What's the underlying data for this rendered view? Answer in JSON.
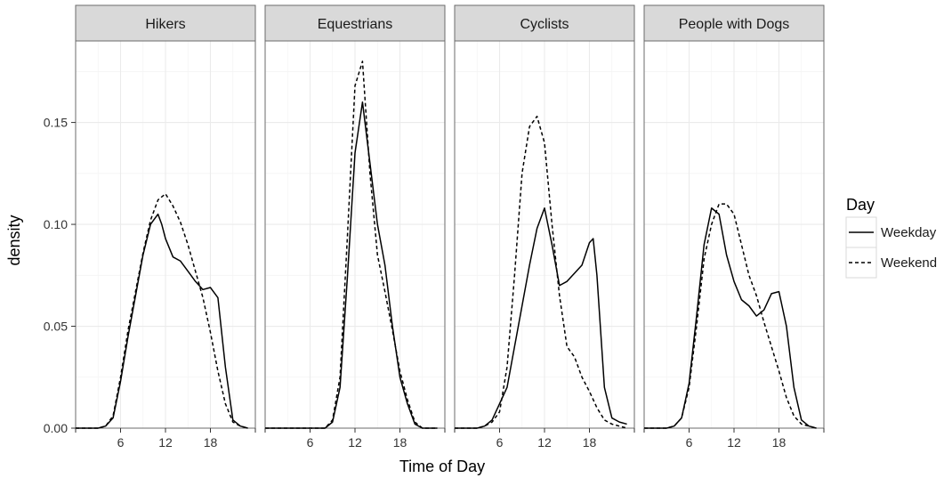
{
  "chart_data": {
    "type": "line",
    "subtype": "faceted density",
    "xlabel": "Time of Day",
    "ylabel": "density",
    "xlim": [
      0,
      24
    ],
    "ylim": [
      0,
      0.19
    ],
    "x_ticks": [
      6,
      12,
      18
    ],
    "x_tick_labels": [
      "6",
      "12",
      "18"
    ],
    "y_ticks": [
      0,
      0.05,
      0.1,
      0.15
    ],
    "y_tick_labels": [
      "0.00",
      "0.05",
      "0.10",
      "0.15"
    ],
    "grid": true,
    "legend": {
      "title": "Day",
      "position": "right",
      "entries": [
        {
          "label": "Weekday",
          "linetype": "solid"
        },
        {
          "label": "Weekend",
          "linetype": "dashed"
        }
      ]
    },
    "panels": [
      {
        "label": "Hikers",
        "series": [
          {
            "name": "Weekday",
            "x": [
              0,
              3,
              4,
              5,
              6,
              7,
              8,
              9,
              10,
              11,
              11.5,
              12,
              13,
              14,
              15,
              16,
              17,
              18,
              19,
              20,
              21,
              22,
              23
            ],
            "y": [
              0,
              0,
              0.001,
              0.005,
              0.023,
              0.045,
              0.065,
              0.085,
              0.1,
              0.105,
              0.1,
              0.093,
              0.084,
              0.082,
              0.077,
              0.072,
              0.068,
              0.069,
              0.064,
              0.03,
              0.004,
              0.001,
              0
            ]
          },
          {
            "name": "Weekend",
            "x": [
              0,
              3,
              4,
              5,
              6,
              7,
              8,
              9,
              10,
              11,
              12,
              13,
              14,
              15,
              16,
              17,
              18,
              19,
              20,
              21,
              22,
              23
            ],
            "y": [
              0,
              0,
              0.001,
              0.006,
              0.025,
              0.048,
              0.067,
              0.086,
              0.102,
              0.112,
              0.115,
              0.109,
              0.101,
              0.09,
              0.077,
              0.064,
              0.047,
              0.028,
              0.012,
              0.003,
              0.001,
              0
            ]
          }
        ]
      },
      {
        "label": "Equestrians",
        "series": [
          {
            "name": "Weekday",
            "x": [
              0,
              8,
              9,
              10,
              11,
              12,
              13,
              14,
              15,
              16,
              17,
              18,
              19,
              20,
              21,
              23
            ],
            "y": [
              0,
              0,
              0.003,
              0.02,
              0.075,
              0.135,
              0.16,
              0.13,
              0.1,
              0.08,
              0.05,
              0.025,
              0.012,
              0.002,
              0,
              0
            ]
          },
          {
            "name": "Weekend",
            "x": [
              0,
              8,
              9,
              10,
              11,
              12,
              13,
              14,
              15,
              16,
              17,
              18,
              19,
              20,
              21,
              23
            ],
            "y": [
              0,
              0,
              0.004,
              0.025,
              0.095,
              0.168,
              0.18,
              0.125,
              0.085,
              0.067,
              0.048,
              0.028,
              0.014,
              0.003,
              0,
              0
            ]
          }
        ]
      },
      {
        "label": "Cyclists",
        "series": [
          {
            "name": "Weekday",
            "x": [
              0,
              3,
              4,
              5,
              6,
              7,
              8,
              9,
              10,
              11,
              12,
              13,
              14,
              15,
              16,
              17,
              18,
              18.5,
              19,
              20,
              21,
              22,
              23
            ],
            "y": [
              0,
              0,
              0.001,
              0.004,
              0.012,
              0.02,
              0.04,
              0.06,
              0.08,
              0.098,
              0.108,
              0.09,
              0.07,
              0.072,
              0.076,
              0.08,
              0.091,
              0.093,
              0.075,
              0.02,
              0.005,
              0.003,
              0.002
            ]
          },
          {
            "name": "Weekend",
            "x": [
              0,
              3,
              4,
              5,
              6,
              7,
              8,
              9,
              10,
              11,
              12,
              13,
              14,
              15,
              16,
              17,
              18,
              19,
              20,
              21,
              22,
              23
            ],
            "y": [
              0,
              0,
              0.001,
              0.003,
              0.008,
              0.03,
              0.075,
              0.125,
              0.148,
              0.153,
              0.14,
              0.1,
              0.065,
              0.04,
              0.035,
              0.025,
              0.018,
              0.01,
              0.004,
              0.002,
              0.001,
              0
            ]
          }
        ]
      },
      {
        "label": "People with Dogs",
        "series": [
          {
            "name": "Weekday",
            "x": [
              0,
              3,
              4,
              5,
              6,
              7,
              8,
              9,
              10,
              11,
              12,
              13,
              14,
              15,
              16,
              17,
              18,
              19,
              20,
              21,
              22,
              23
            ],
            "y": [
              0,
              0,
              0.001,
              0.005,
              0.022,
              0.055,
              0.09,
              0.108,
              0.105,
              0.085,
              0.072,
              0.063,
              0.06,
              0.055,
              0.058,
              0.066,
              0.067,
              0.05,
              0.02,
              0.004,
              0.001,
              0
            ]
          },
          {
            "name": "Weekend",
            "x": [
              0,
              3,
              4,
              5,
              6,
              7,
              8,
              9,
              10,
              11,
              12,
              13,
              14,
              15,
              16,
              17,
              18,
              19,
              20,
              21,
              22,
              23
            ],
            "y": [
              0,
              0,
              0.001,
              0.005,
              0.02,
              0.05,
              0.083,
              0.1,
              0.11,
              0.11,
              0.105,
              0.09,
              0.075,
              0.065,
              0.052,
              0.04,
              0.028,
              0.015,
              0.006,
              0.002,
              0.001,
              0
            ]
          }
        ]
      }
    ]
  }
}
